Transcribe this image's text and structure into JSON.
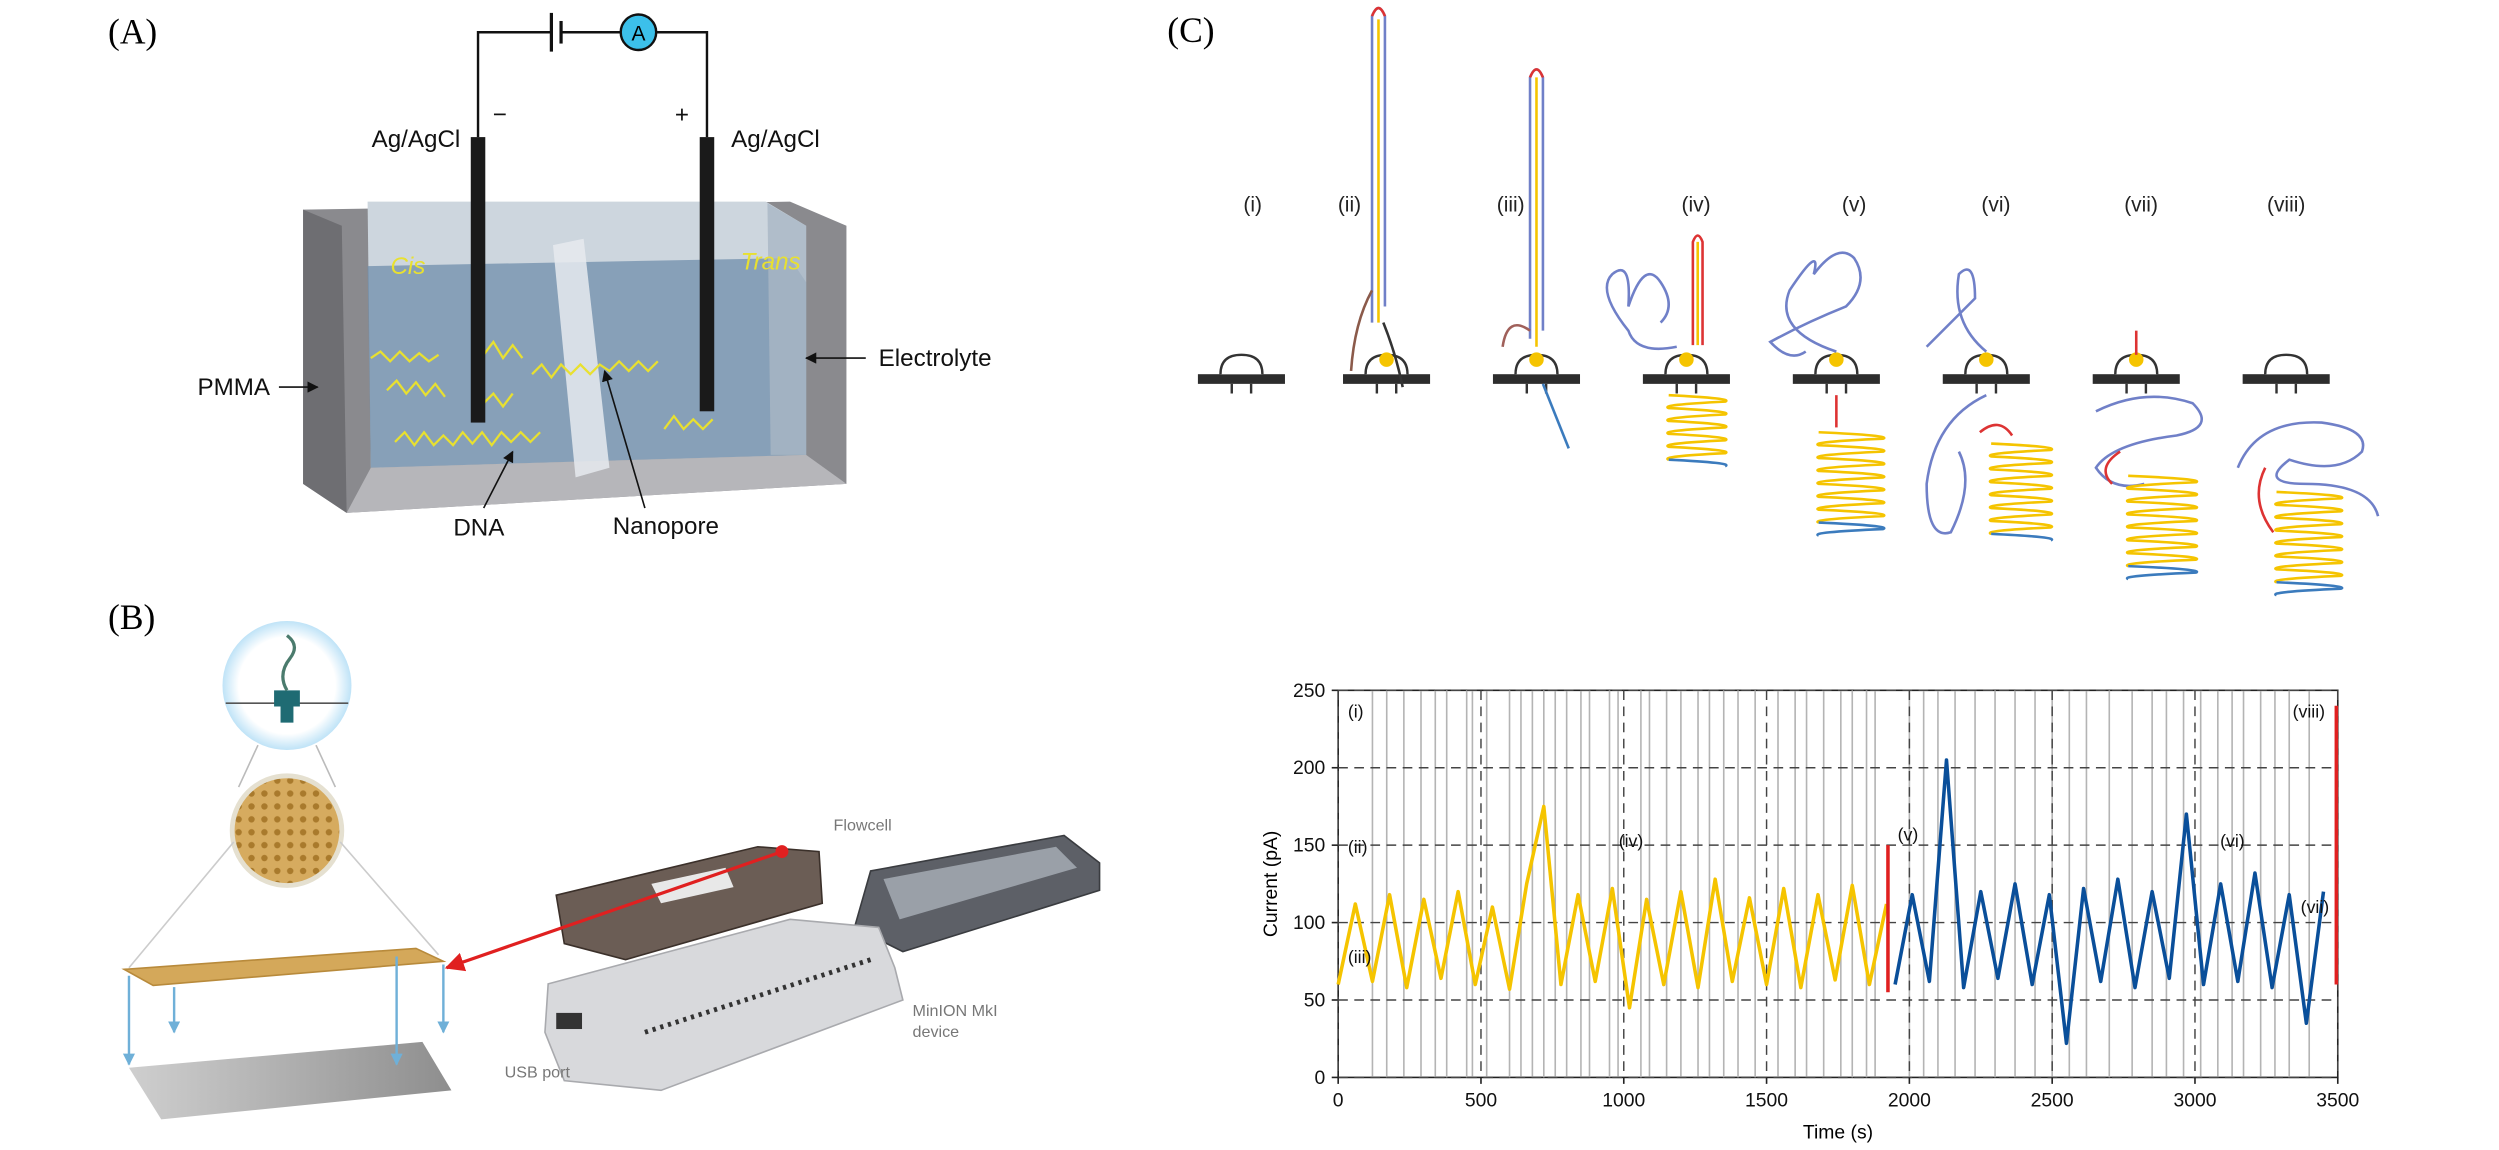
{
  "panel_a": {
    "label": "(A)",
    "electrode_left": "Ag/AgCl",
    "electrode_right": "Ag/AgCl",
    "minus": "−",
    "plus": "+",
    "ammeter": "A",
    "cis": "Cis",
    "trans": "Trans",
    "pmma": "PMMA",
    "electrolyte": "Electrolyte",
    "dna": "DNA",
    "nanopore": "Nanopore"
  },
  "panel_b": {
    "label": "(B)",
    "flowcell": "Flowcell",
    "device": [
      "MinION MkI",
      "device"
    ],
    "usb": "USB port"
  },
  "panel_c": {
    "label": "(C)",
    "stages": [
      "(i)",
      "(ii)",
      "(iii)",
      "(iv)",
      "(v)",
      "(vi)",
      "(vii)",
      "(viii)"
    ]
  },
  "chart_data": {
    "type": "line",
    "x_label": "Time (s)",
    "y_label": "Current (pA)",
    "xlim": [
      0,
      3500
    ],
    "xticks": [
      0,
      500,
      1000,
      1500,
      2000,
      2500,
      3000,
      3500
    ],
    "ylim": [
      0,
      250
    ],
    "yticks": [
      0,
      50,
      100,
      150,
      200,
      250
    ],
    "grid": true,
    "annotations": [
      "(i)",
      "(ii)",
      "(iii)",
      "(iv)",
      "(v)",
      "(vi)",
      "(vii)",
      "(viii)"
    ],
    "event_lines": {
      "color": "#b4b4b4",
      "x": [
        120,
        170,
        230,
        290,
        340,
        380,
        450,
        470,
        520,
        600,
        640,
        680,
        720,
        760,
        800,
        850,
        880,
        950,
        980,
        1060,
        1090,
        1150,
        1200,
        1260,
        1300,
        1350,
        1400,
        1460,
        1540,
        1600,
        1640,
        1700,
        1760,
        1800,
        1850,
        1880,
        2000,
        2050,
        2100,
        2160,
        2230,
        2300,
        2370,
        2440,
        2500,
        2560,
        2620,
        2700,
        2780,
        2850,
        2900,
        2960,
        3020,
        3080,
        3130,
        3170,
        3230,
        3280,
        3330,
        3400
      ]
    },
    "series": [
      {
        "color": "#f5c400",
        "x": [
          0,
          60,
          120,
          180,
          240,
          300,
          360,
          420,
          480,
          540,
          600,
          660,
          720,
          780,
          840,
          900,
          960,
          1020,
          1080,
          1140,
          1200,
          1260,
          1320,
          1380,
          1440,
          1500,
          1560,
          1620,
          1680,
          1740,
          1800,
          1860,
          1920
        ],
        "values": [
          60,
          112,
          62,
          118,
          58,
          115,
          64,
          120,
          60,
          110,
          57,
          125,
          175,
          60,
          118,
          62,
          122,
          45,
          115,
          60,
          120,
          58,
          128,
          62,
          116,
          60,
          122,
          58,
          118,
          63,
          124,
          60,
          112
        ]
      },
      {
        "color": "#0a4f9a",
        "x": [
          1950,
          2010,
          2070,
          2130,
          2190,
          2250,
          2310,
          2370,
          2430,
          2490,
          2550,
          2610,
          2670,
          2730,
          2790,
          2850,
          2910,
          2970,
          3030,
          3090,
          3150,
          3210,
          3270,
          3330,
          3390,
          3450
        ],
        "values": [
          60,
          118,
          62,
          205,
          58,
          120,
          64,
          125,
          60,
          118,
          22,
          122,
          62,
          128,
          58,
          120,
          64,
          170,
          60,
          125,
          62,
          132,
          58,
          118,
          35,
          120
        ]
      },
      {
        "color": "#e02020",
        "x": [
          1925,
          1925
        ],
        "values": [
          55,
          150
        ]
      },
      {
        "color": "#e02020",
        "x": [
          3495,
          3495
        ],
        "values": [
          60,
          240
        ]
      }
    ]
  }
}
